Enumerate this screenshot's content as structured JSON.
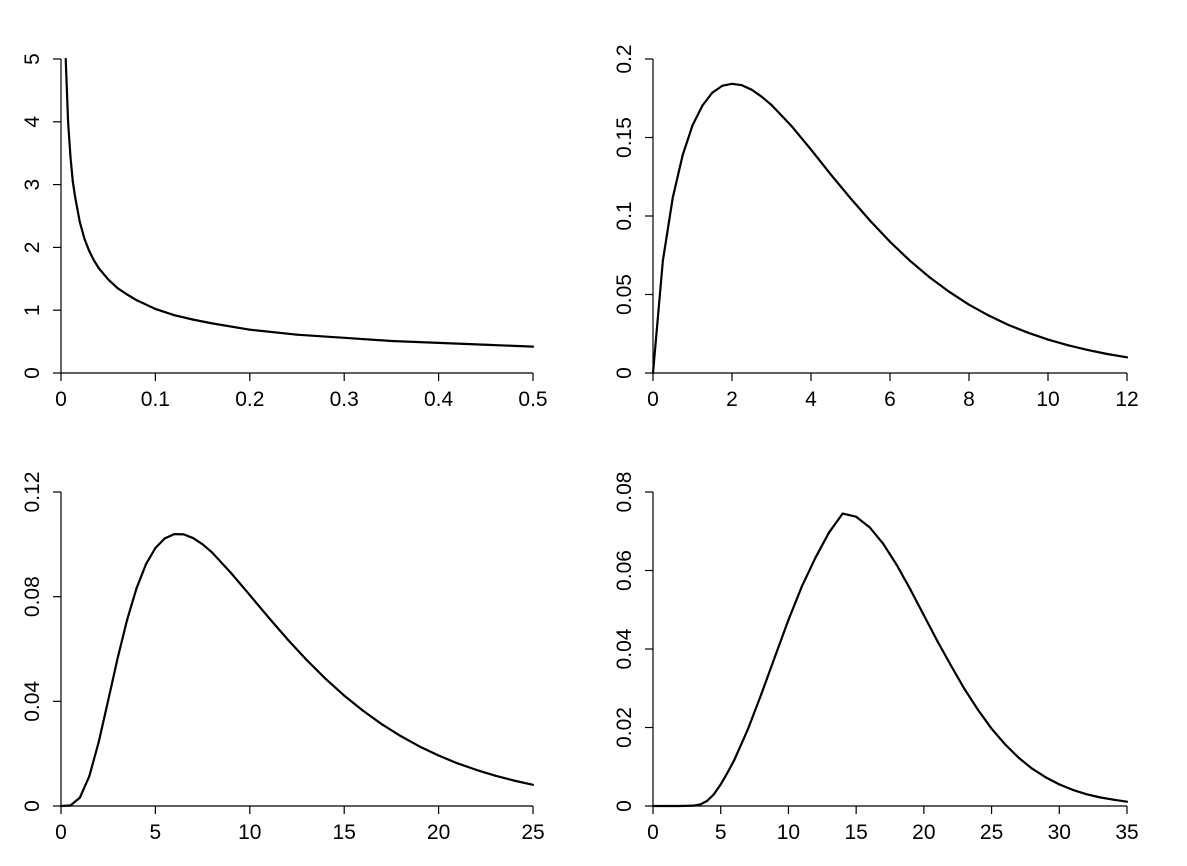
{
  "chart_data": [
    {
      "type": "line",
      "title": "",
      "xlabel": "",
      "ylabel": "",
      "xlim": [
        0,
        0.5
      ],
      "ylim": [
        0,
        5
      ],
      "grid": false,
      "x_ticks": [
        0,
        0.1,
        0.2,
        0.3,
        0.4,
        0.5
      ],
      "x_tick_labels": [
        "0",
        "0.1",
        "0.2",
        "0.3",
        "0.4",
        "0.5"
      ],
      "y_ticks": [
        0,
        1,
        2,
        3,
        4,
        5
      ],
      "y_tick_labels": [
        "0",
        "1",
        "2",
        "3",
        "4",
        "5"
      ],
      "series": [
        {
          "x": [
            0.005,
            0.0075,
            0.01,
            0.0125,
            0.015,
            0.02,
            0.025,
            0.03,
            0.035,
            0.04,
            0.05,
            0.06,
            0.07,
            0.08,
            0.1,
            0.12,
            0.14,
            0.16,
            0.2,
            0.25,
            0.3,
            0.35,
            0.4,
            0.45,
            0.5
          ],
          "y": [
            5.0,
            4.0,
            3.45,
            3.05,
            2.8,
            2.4,
            2.13,
            1.94,
            1.79,
            1.67,
            1.49,
            1.35,
            1.25,
            1.16,
            1.02,
            0.92,
            0.85,
            0.79,
            0.69,
            0.61,
            0.56,
            0.51,
            0.48,
            0.45,
            0.42
          ]
        }
      ]
    },
    {
      "type": "line",
      "title": "",
      "xlabel": "",
      "ylabel": "",
      "xlim": [
        0,
        12
      ],
      "ylim": [
        0,
        0.2
      ],
      "grid": false,
      "x_ticks": [
        0,
        2,
        4,
        6,
        8,
        10,
        12
      ],
      "x_tick_labels": [
        "0",
        "2",
        "4",
        "6",
        "8",
        "10",
        "12"
      ],
      "y_ticks": [
        0,
        0.05,
        0.1,
        0.15,
        0.2
      ],
      "y_tick_labels": [
        "0",
        "0.05",
        "0.1",
        "0.15",
        "0.2"
      ],
      "series": [
        {
          "x": [
            0,
            0.25,
            0.5,
            0.75,
            1,
            1.25,
            1.5,
            1.75,
            2,
            2.25,
            2.5,
            2.75,
            3,
            3.5,
            4,
            4.5,
            5,
            5.5,
            6,
            6.5,
            7,
            7.5,
            8,
            8.5,
            9,
            9.5,
            10,
            10.5,
            11,
            11.5,
            12
          ],
          "y": [
            0.0,
            0.0716,
            0.1116,
            0.1387,
            0.1577,
            0.1703,
            0.1785,
            0.1829,
            0.1842,
            0.1833,
            0.1804,
            0.176,
            0.1707,
            0.1575,
            0.1423,
            0.1265,
            0.1113,
            0.0969,
            0.0836,
            0.0716,
            0.061,
            0.0517,
            0.0435,
            0.0366,
            0.0306,
            0.0256,
            0.0213,
            0.0177,
            0.0147,
            0.0121,
            0.01
          ]
        }
      ]
    },
    {
      "type": "line",
      "title": "",
      "xlabel": "",
      "ylabel": "",
      "xlim": [
        0,
        25
      ],
      "ylim": [
        0,
        0.12
      ],
      "grid": false,
      "x_ticks": [
        0,
        5,
        10,
        15,
        20,
        25
      ],
      "x_tick_labels": [
        "0",
        "5",
        "10",
        "15",
        "20",
        "25"
      ],
      "y_ticks": [
        0,
        0.04,
        0.08,
        0.12
      ],
      "y_tick_labels": [
        "0",
        "0.04",
        "0.08",
        "0.12"
      ],
      "series": [
        {
          "x": [
            0,
            0.5,
            1,
            1.5,
            2,
            2.5,
            3,
            3.5,
            4,
            4.5,
            5,
            5.5,
            6,
            6.5,
            7,
            7.5,
            8,
            9,
            10,
            11,
            12,
            13,
            14,
            15,
            16,
            17,
            18,
            19,
            20,
            21,
            22,
            23,
            24,
            25
          ],
          "y": [
            0.0,
            0.0002,
            0.0032,
            0.0114,
            0.0245,
            0.0404,
            0.0565,
            0.0711,
            0.0832,
            0.0924,
            0.0986,
            0.1023,
            0.1039,
            0.1038,
            0.1024,
            0.1,
            0.0969,
            0.0891,
            0.0806,
            0.072,
            0.0637,
            0.0559,
            0.0487,
            0.0422,
            0.0364,
            0.0312,
            0.0267,
            0.0227,
            0.0193,
            0.0163,
            0.0138,
            0.0116,
            0.0097,
            0.0081
          ]
        }
      ]
    },
    {
      "type": "line",
      "title": "",
      "xlabel": "",
      "ylabel": "",
      "xlim": [
        0,
        35
      ],
      "ylim": [
        0,
        0.08
      ],
      "grid": false,
      "x_ticks": [
        0,
        5,
        10,
        15,
        20,
        25,
        30,
        35
      ],
      "x_tick_labels": [
        "0",
        "5",
        "10",
        "15",
        "20",
        "25",
        "30",
        "35"
      ],
      "y_ticks": [
        0,
        0.02,
        0.04,
        0.06,
        0.08
      ],
      "y_tick_labels": [
        "0",
        "0.02",
        "0.04",
        "0.06",
        "0.08"
      ],
      "series": [
        {
          "x": [
            0,
            1,
            2,
            3,
            3.5,
            4,
            4.5,
            5,
            5.5,
            6,
            7,
            8,
            9,
            10,
            11,
            12,
            13,
            14,
            15,
            16,
            17,
            18,
            19,
            20,
            21,
            22,
            23,
            24,
            25,
            26,
            27,
            28,
            29,
            30,
            31,
            32,
            33,
            34,
            35
          ],
          "y": [
            0.0,
            0.0,
            0.0,
            0.0001,
            0.0004,
            0.0013,
            0.003,
            0.0055,
            0.0085,
            0.0117,
            0.0195,
            0.0285,
            0.038,
            0.0474,
            0.056,
            0.0633,
            0.0697,
            0.0745,
            0.0737,
            0.071,
            0.0668,
            0.0614,
            0.0552,
            0.0486,
            0.042,
            0.0358,
            0.0298,
            0.0245,
            0.0197,
            0.0157,
            0.0123,
            0.0095,
            0.0073,
            0.0055,
            0.0041,
            0.003,
            0.0022,
            0.0016,
            0.0011
          ]
        }
      ]
    }
  ]
}
